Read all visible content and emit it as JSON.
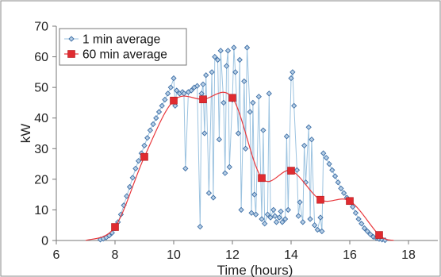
{
  "chart_data": {
    "type": "line",
    "xlabel": "Time (hours)",
    "ylabel": "kW",
    "xlim": [
      6,
      19
    ],
    "ylim": [
      0,
      70
    ],
    "x_ticks": [
      6,
      8,
      10,
      12,
      14,
      16,
      18
    ],
    "y_ticks": [
      0,
      10,
      20,
      30,
      40,
      50,
      60,
      70
    ],
    "grid": false,
    "legend_position": "top-left",
    "series": [
      {
        "name": "1 min average",
        "color": "#7aa7cc",
        "marker": "diamond",
        "x": [
          7.5,
          7.6,
          7.7,
          7.8,
          7.9,
          8.0,
          8.1,
          8.2,
          8.3,
          8.4,
          8.5,
          8.6,
          8.7,
          8.8,
          8.9,
          9.0,
          9.1,
          9.2,
          9.3,
          9.4,
          9.5,
          9.6,
          9.7,
          9.8,
          9.9,
          10.0,
          10.05,
          10.1,
          10.2,
          10.3,
          10.35,
          10.4,
          10.5,
          10.6,
          10.7,
          10.8,
          10.9,
          10.95,
          11.0,
          11.05,
          11.1,
          11.2,
          11.3,
          11.35,
          11.4,
          11.5,
          11.55,
          11.6,
          11.7,
          11.75,
          11.8,
          11.85,
          11.9,
          12.0,
          12.05,
          12.1,
          12.2,
          12.25,
          12.3,
          12.4,
          12.45,
          12.5,
          12.6,
          12.65,
          12.7,
          12.75,
          12.8,
          12.9,
          13.0,
          13.05,
          13.1,
          13.2,
          13.25,
          13.3,
          13.4,
          13.45,
          13.5,
          13.6,
          13.65,
          13.7,
          13.8,
          13.85,
          13.9,
          14.0,
          14.05,
          14.1,
          14.2,
          14.25,
          14.3,
          14.4,
          14.45,
          14.5,
          14.6,
          14.65,
          14.7,
          14.8,
          14.9,
          15.0,
          15.05,
          15.1,
          15.2,
          15.3,
          15.4,
          15.5,
          15.6,
          15.7,
          15.8,
          15.9,
          16.0,
          16.1,
          16.2,
          16.3,
          16.4,
          16.5,
          16.6,
          16.7,
          16.8,
          16.9,
          17.0,
          17.1,
          17.2
        ],
        "y": [
          0.3,
          0.6,
          1.0,
          1.6,
          2.5,
          4.0,
          6.0,
          8.5,
          11.5,
          14.5,
          17.5,
          20.5,
          23.5,
          26.0,
          28.5,
          31.0,
          33.5,
          36.0,
          38.0,
          40.0,
          42.0,
          44.0,
          46.0,
          48.0,
          50.0,
          53.0,
          44.0,
          49.0,
          48.0,
          48.5,
          48.0,
          23.5,
          48.5,
          49.0,
          50.0,
          50.5,
          4.5,
          48.0,
          51.0,
          35.0,
          54.0,
          15.5,
          55.0,
          14.0,
          60.0,
          59.0,
          33.0,
          62.0,
          45.0,
          22.0,
          57.0,
          62.0,
          24.0,
          46.0,
          63.0,
          55.0,
          35.0,
          59.0,
          10.0,
          52.0,
          30.0,
          63.0,
          42.0,
          9.0,
          45.0,
          15.0,
          8.5,
          47.0,
          7.0,
          36.0,
          5.5,
          8.5,
          48.0,
          7.5,
          10.0,
          8.0,
          6.0,
          7.5,
          9.5,
          6.0,
          7.0,
          34.0,
          10.0,
          53.0,
          55.0,
          44.0,
          23.0,
          8.0,
          12.5,
          6.0,
          31.0,
          19.0,
          37.0,
          7.0,
          33.0,
          5.0,
          3.5,
          7.5,
          3.0,
          28.5,
          27.0,
          25.0,
          23.0,
          21.0,
          19.0,
          17.0,
          15.5,
          14.0,
          12.5,
          11.0,
          9.0,
          7.0,
          5.5,
          4.0,
          3.0,
          2.0,
          1.2,
          0.8,
          0.5,
          0.3,
          0.1
        ]
      },
      {
        "name": "60 min average",
        "color": "#e8383d",
        "marker": "square",
        "x": [
          8.0,
          9.0,
          10.0,
          11.0,
          12.0,
          13.0,
          14.0,
          15.0,
          16.0,
          17.0
        ],
        "y": [
          4.4,
          27.3,
          45.7,
          46.1,
          46.6,
          20.4,
          22.8,
          13.3,
          12.9,
          1.8
        ]
      }
    ]
  }
}
